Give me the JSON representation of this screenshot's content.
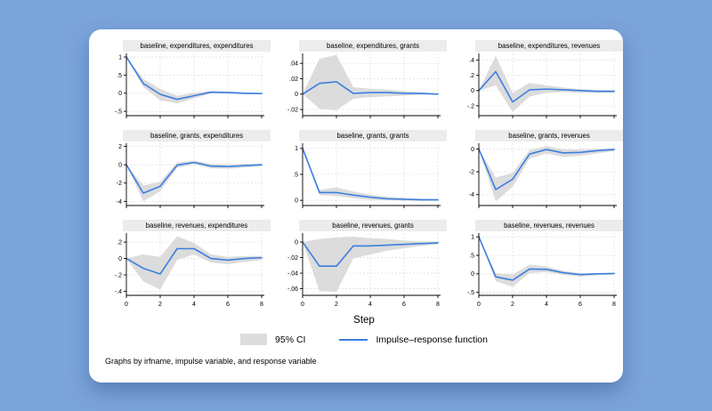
{
  "chart_data": {
    "type": "line",
    "layout": "3x3-small-multiples",
    "x": [
      0,
      1,
      2,
      3,
      4,
      5,
      6,
      7,
      8
    ],
    "xticks": [
      0,
      2,
      4,
      6,
      8
    ],
    "xtick_labels": [
      "0",
      "2",
      "4",
      "6",
      "8"
    ],
    "xlabel": "Step",
    "grid": "dashed-both-axes",
    "colors": {
      "irf_line": "#3C7EE0",
      "ci_fill": "#DCDCDC",
      "title_strip": "#ECECEC",
      "background": "#7BA4DB",
      "card": "#FFFFFF"
    },
    "legend": [
      {
        "label": "95% CI",
        "kind": "area",
        "color": "#DCDCDC"
      },
      {
        "label": "Impulse–response function",
        "kind": "line",
        "color": "#3C7EE0"
      }
    ],
    "note": "Graphs by irfname, impulse variable, and response variable",
    "plots": [
      {
        "title": "baseline, expenditures, expenditures",
        "yticks": [
          1,
          0.5,
          0,
          -0.5
        ],
        "ytick_labels": [
          "1",
          ".5",
          "0",
          "-.5"
        ],
        "ylim": [
          -0.62,
          1.1
        ],
        "irf": [
          1,
          0.27,
          -0.03,
          -0.17,
          -0.07,
          0.03,
          0.02,
          0.0,
          -0.01
        ],
        "ci_upper": [
          1,
          0.4,
          0.12,
          -0.07,
          0.01,
          0.06,
          0.04,
          0.02,
          0.01
        ],
        "ci_lower": [
          1,
          0.17,
          -0.2,
          -0.28,
          -0.15,
          -0.01,
          -0.02,
          -0.03,
          -0.03
        ],
        "show_xtick_labels": false
      },
      {
        "title": "baseline, expenditures, grants",
        "yticks": [
          0.04,
          0.02,
          0,
          -0.02
        ],
        "ytick_labels": [
          ".04",
          ".02",
          "0",
          "-.02"
        ],
        "ylim": [
          -0.028,
          0.053
        ],
        "irf": [
          0,
          0.014,
          0.016,
          0.001,
          0.002,
          0.002,
          0.001,
          0.001,
          0.0
        ],
        "ci_upper": [
          0,
          0.046,
          0.051,
          0.009,
          0.007,
          0.006,
          0.004,
          0.002,
          0.001
        ],
        "ci_lower": [
          0,
          -0.019,
          -0.021,
          -0.006,
          -0.004,
          -0.003,
          -0.002,
          -0.001,
          -0.001
        ],
        "show_xtick_labels": false
      },
      {
        "title": "baseline, expenditures, revenues",
        "yticks": [
          0.4,
          0.2,
          0,
          -0.2
        ],
        "ytick_labels": [
          ".4",
          ".2",
          "0",
          "-.2"
        ],
        "ylim": [
          -0.33,
          0.49
        ],
        "irf": [
          0,
          0.25,
          -0.15,
          0.01,
          0.02,
          0.01,
          0.0,
          -0.01,
          -0.01
        ],
        "ci_upper": [
          0,
          0.46,
          -0.03,
          0.1,
          0.07,
          0.04,
          0.02,
          0.01,
          0.01
        ],
        "ci_lower": [
          0,
          0.07,
          -0.28,
          -0.08,
          -0.03,
          -0.02,
          -0.03,
          -0.03,
          -0.03
        ],
        "show_xtick_labels": false
      },
      {
        "title": "baseline, grants, expenditures",
        "yticks": [
          2,
          0,
          -2,
          -4
        ],
        "ytick_labels": [
          "2",
          "0",
          "-2",
          "-4"
        ],
        "ylim": [
          -4.45,
          2.35
        ],
        "irf": [
          0,
          -3.1,
          -2.35,
          -0.05,
          0.25,
          -0.15,
          -0.2,
          -0.1,
          0.0
        ],
        "ci_upper": [
          0,
          -2.25,
          -1.85,
          0.25,
          0.45,
          0.1,
          0.05,
          0.1,
          0.1
        ],
        "ci_lower": [
          0,
          -4.0,
          -2.9,
          -0.35,
          0.05,
          -0.4,
          -0.45,
          -0.3,
          -0.15
        ],
        "show_xtick_labels": false
      },
      {
        "title": "baseline, grants, grants",
        "yticks": [
          1,
          0.5,
          0
        ],
        "ytick_labels": [
          "1",
          ".5",
          "0"
        ],
        "ylim": [
          -0.1,
          1.1
        ],
        "irf": [
          1,
          0.15,
          0.15,
          0.1,
          0.06,
          0.03,
          0.02,
          0.01,
          0.01
        ],
        "ci_upper": [
          1,
          0.2,
          0.25,
          0.17,
          0.11,
          0.07,
          0.05,
          0.03,
          0.02
        ],
        "ci_lower": [
          1,
          0.1,
          0.08,
          0.04,
          0.01,
          0.0,
          -0.01,
          -0.01,
          -0.01
        ],
        "show_xtick_labels": false
      },
      {
        "title": "baseline, grants, revenues",
        "yticks": [
          0,
          -2,
          -4
        ],
        "ytick_labels": [
          "0",
          "-2",
          "-4"
        ],
        "ylim": [
          -4.95,
          0.5
        ],
        "irf": [
          0,
          -3.55,
          -2.65,
          -0.45,
          -0.05,
          -0.35,
          -0.3,
          -0.15,
          -0.05
        ],
        "ci_upper": [
          0,
          -2.5,
          -2.1,
          -0.1,
          0.25,
          -0.05,
          -0.05,
          0.0,
          0.05
        ],
        "ci_lower": [
          0,
          -4.6,
          -3.3,
          -0.85,
          -0.4,
          -0.7,
          -0.6,
          -0.4,
          -0.2
        ],
        "show_xtick_labels": false
      },
      {
        "title": "baseline, revenues, expenditures",
        "yticks": [
          0.2,
          0,
          -0.2,
          -0.4
        ],
        "ytick_labels": [
          ".2",
          "0",
          "-.2",
          "-.4"
        ],
        "ylim": [
          -0.45,
          0.31
        ],
        "irf": [
          0,
          -0.12,
          -0.19,
          0.12,
          0.12,
          0.0,
          -0.02,
          0.0,
          0.01
        ],
        "ci_upper": [
          0,
          0.05,
          0.02,
          0.27,
          0.19,
          0.05,
          0.02,
          0.03,
          0.03
        ],
        "ci_lower": [
          0,
          -0.28,
          -0.38,
          -0.02,
          0.05,
          -0.05,
          -0.07,
          -0.04,
          -0.02
        ],
        "show_xtick_labels": true
      },
      {
        "title": "baseline, revenues, grants",
        "yticks": [
          0,
          -0.02,
          -0.04,
          -0.06
        ],
        "ytick_labels": [
          "0",
          "-.02",
          "-.04",
          "-.06"
        ],
        "ylim": [
          -0.0685,
          0.0115
        ],
        "irf": [
          0,
          -0.031,
          -0.031,
          -0.005,
          -0.005,
          -0.004,
          -0.003,
          -0.002,
          -0.001
        ],
        "ci_upper": [
          0,
          0.004,
          0.006,
          0.007,
          0.005,
          0.004,
          0.002,
          0.001,
          0.0
        ],
        "ci_lower": [
          0,
          -0.063,
          -0.064,
          -0.021,
          -0.016,
          -0.011,
          -0.008,
          -0.005,
          -0.003
        ],
        "show_xtick_labels": true
      },
      {
        "title": "baseline, revenues, revenues",
        "yticks": [
          1,
          0.5,
          0,
          -0.5
        ],
        "ytick_labels": [
          "1",
          ".5",
          "0",
          "-.5"
        ],
        "ylim": [
          -0.58,
          1.1
        ],
        "irf": [
          1,
          -0.08,
          -0.17,
          0.13,
          0.12,
          0.03,
          -0.02,
          0.0,
          0.01
        ],
        "ci_upper": [
          1,
          0.02,
          -0.02,
          0.25,
          0.2,
          0.08,
          0.02,
          0.02,
          0.02
        ],
        "ci_lower": [
          1,
          -0.2,
          -0.35,
          0.02,
          0.05,
          -0.03,
          -0.07,
          -0.04,
          -0.02
        ],
        "show_xtick_labels": true
      }
    ]
  }
}
